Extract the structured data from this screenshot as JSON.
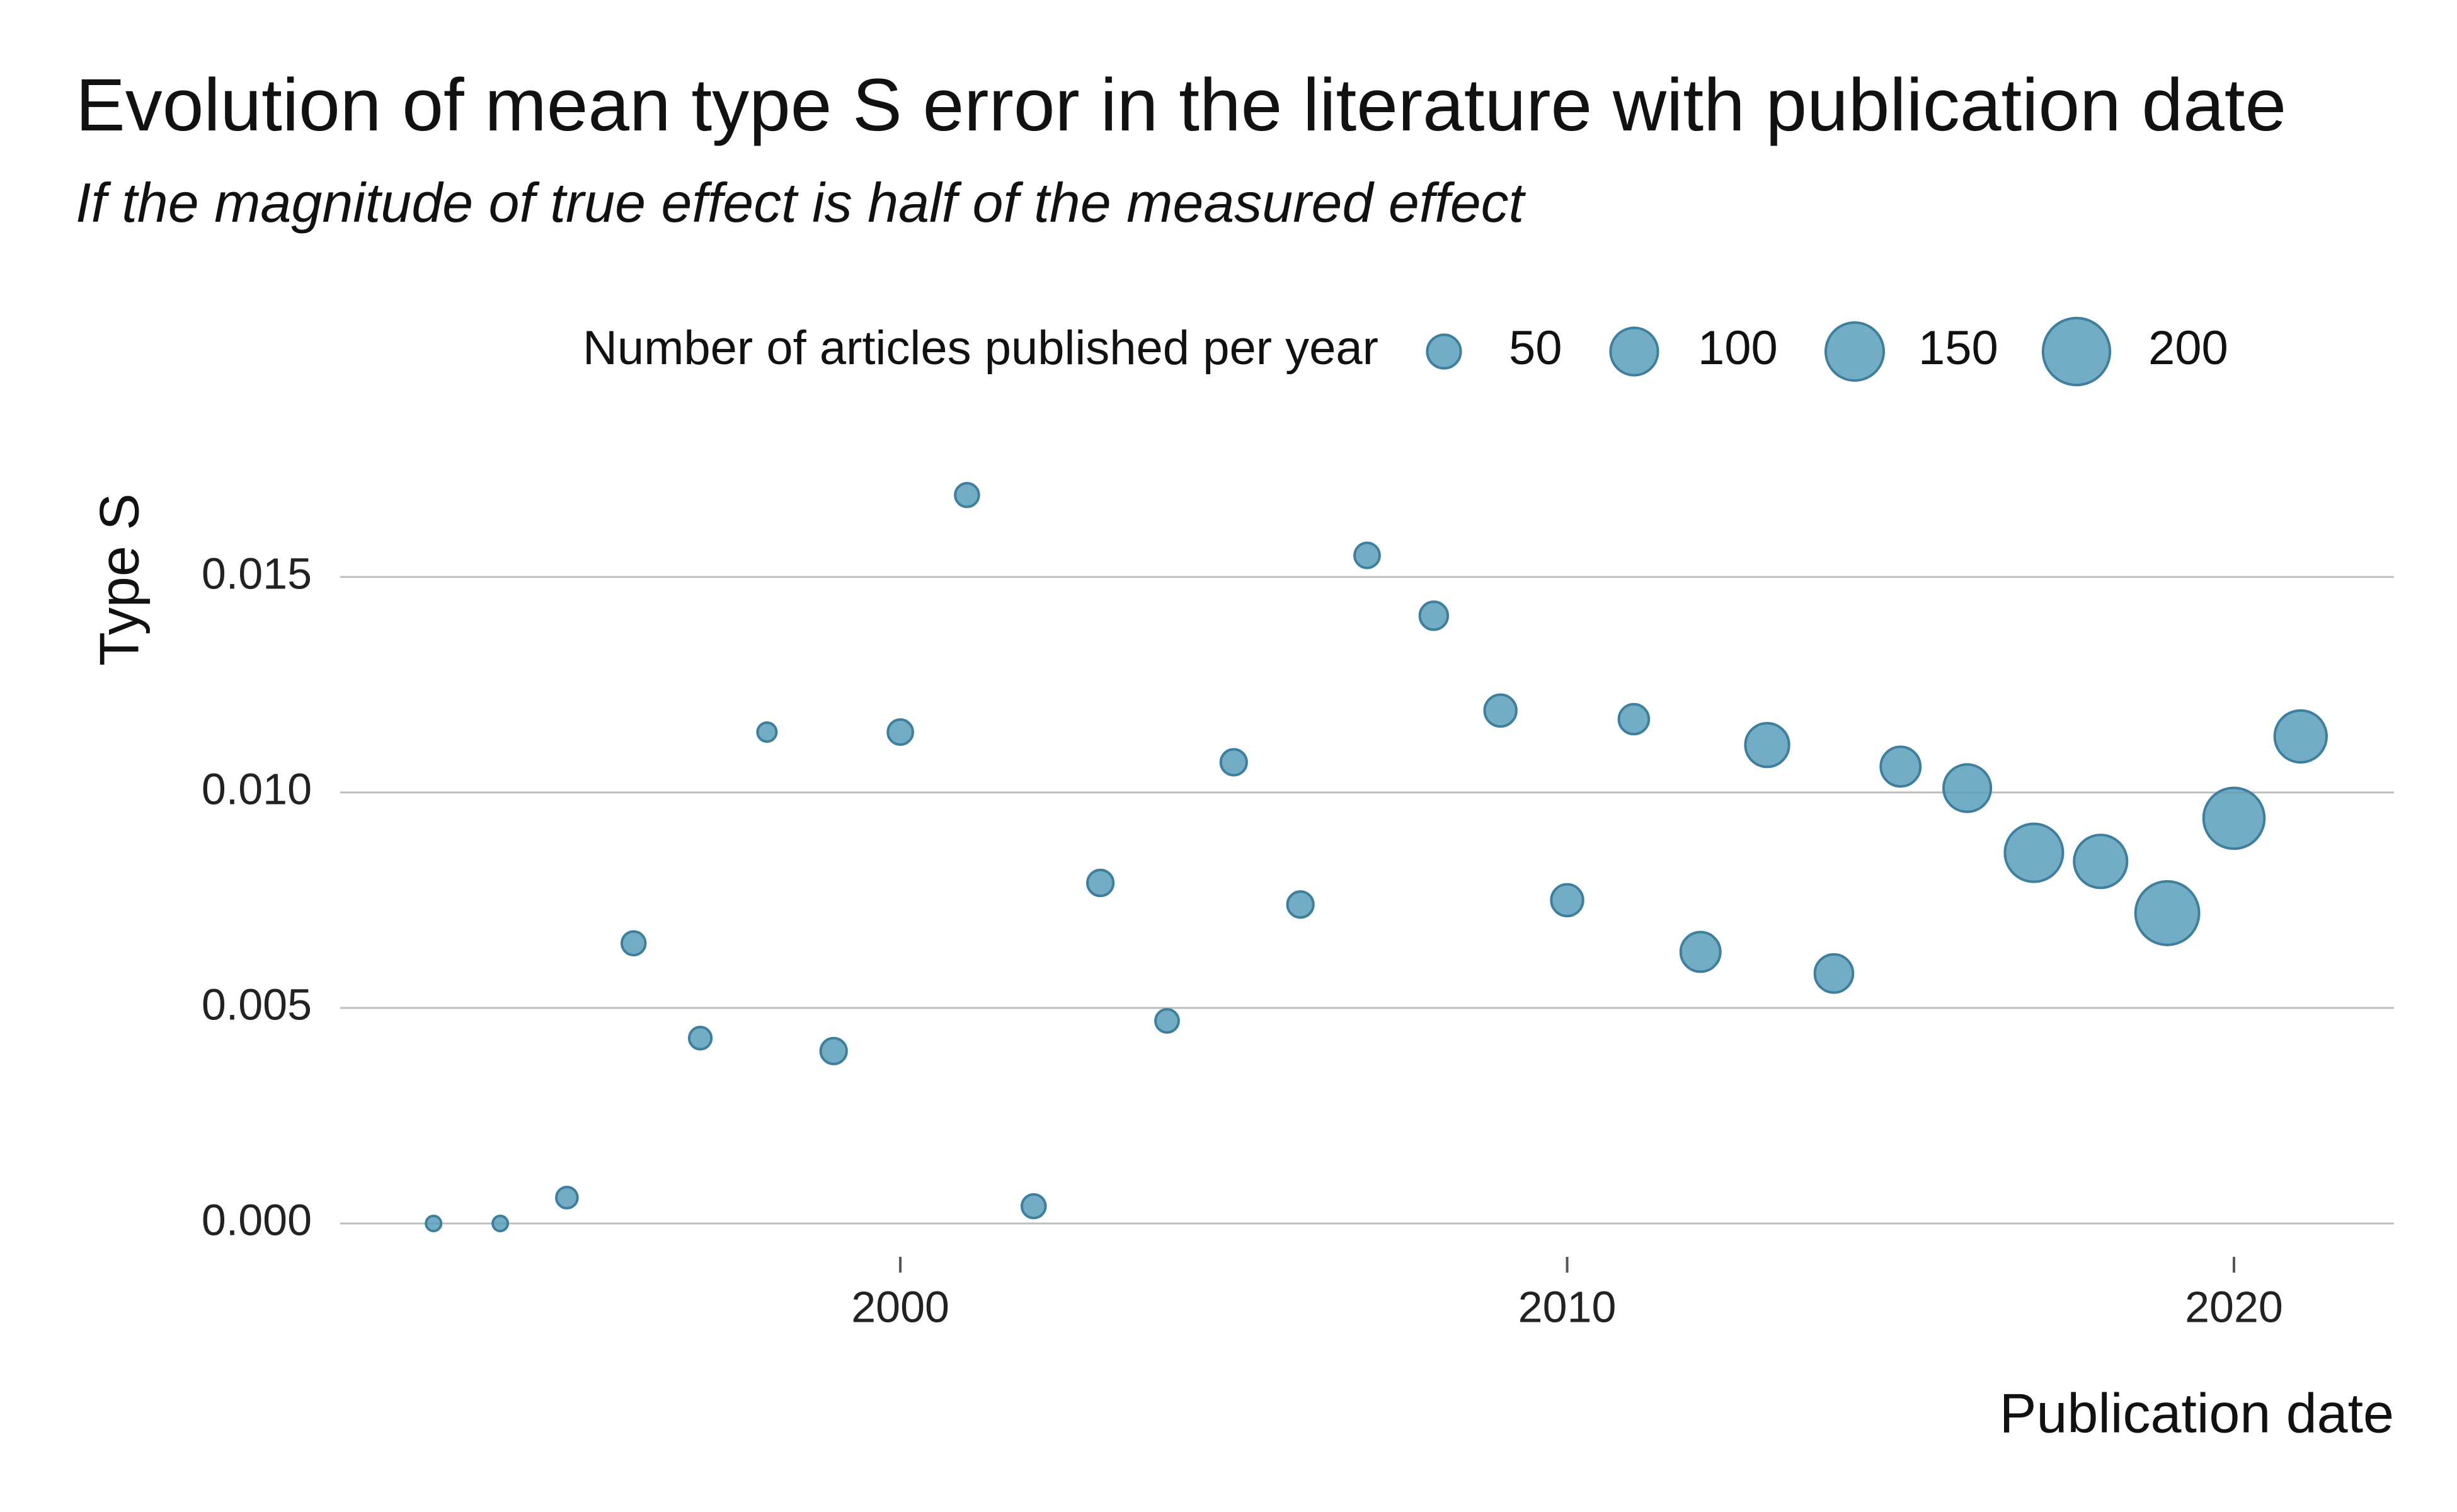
{
  "chart_data": {
    "type": "scatter",
    "title": "Evolution of mean type S error in the literature with publication date",
    "subtitle": "If the magnitude of true effect is half of the measured effect",
    "xlabel": "Publication date",
    "ylabel": "Type S",
    "xlim": [
      1991.6,
      2022.4
    ],
    "ylim": [
      0,
      0.0183
    ],
    "x_ticks": [
      2000,
      2010,
      2020
    ],
    "x_tick_labels": [
      "2000",
      "2010",
      "2020"
    ],
    "y_ticks": [
      0,
      0.005,
      0.01,
      0.015
    ],
    "y_tick_labels": [
      "0.000",
      "0.005",
      "0.010",
      "0.015"
    ],
    "grid": "horizontal",
    "legend": {
      "position": "top",
      "title": "Number of articles published per year",
      "sizes": [
        50,
        100,
        150,
        200
      ],
      "labels": [
        "50",
        "100",
        "150",
        "200"
      ]
    },
    "point_color": "#5b9dbb",
    "point_stroke": "#3f7f9e",
    "size_max": 230,
    "points": [
      {
        "x": 1993,
        "y": 0.0,
        "n": 3
      },
      {
        "x": 1994,
        "y": 0.0,
        "n": 10
      },
      {
        "x": 1995,
        "y": 0.0006,
        "n": 20
      },
      {
        "x": 1996,
        "y": 0.0065,
        "n": 25
      },
      {
        "x": 1997,
        "y": 0.0043,
        "n": 22
      },
      {
        "x": 1998,
        "y": 0.0114,
        "n": 16
      },
      {
        "x": 1999,
        "y": 0.004,
        "n": 30
      },
      {
        "x": 2000,
        "y": 0.0114,
        "n": 28
      },
      {
        "x": 2001,
        "y": 0.0169,
        "n": 25
      },
      {
        "x": 2002,
        "y": 0.0004,
        "n": 25
      },
      {
        "x": 2003,
        "y": 0.0079,
        "n": 30
      },
      {
        "x": 2004,
        "y": 0.0047,
        "n": 24
      },
      {
        "x": 2005,
        "y": 0.0107,
        "n": 30
      },
      {
        "x": 2006,
        "y": 0.0074,
        "n": 30
      },
      {
        "x": 2007,
        "y": 0.0155,
        "n": 28
      },
      {
        "x": 2008,
        "y": 0.0141,
        "n": 35
      },
      {
        "x": 2009,
        "y": 0.0119,
        "n": 45
      },
      {
        "x": 2010,
        "y": 0.0075,
        "n": 45
      },
      {
        "x": 2011,
        "y": 0.0117,
        "n": 40
      },
      {
        "x": 2012,
        "y": 0.0063,
        "n": 70
      },
      {
        "x": 2013,
        "y": 0.0111,
        "n": 85
      },
      {
        "x": 2014,
        "y": 0.0058,
        "n": 65
      },
      {
        "x": 2015,
        "y": 0.0106,
        "n": 70
      },
      {
        "x": 2016,
        "y": 0.0101,
        "n": 100
      },
      {
        "x": 2017,
        "y": 0.0086,
        "n": 150
      },
      {
        "x": 2018,
        "y": 0.0084,
        "n": 125
      },
      {
        "x": 2019,
        "y": 0.0072,
        "n": 180
      },
      {
        "x": 2020,
        "y": 0.0094,
        "n": 165
      },
      {
        "x": 2021,
        "y": 0.0113,
        "n": 120
      }
    ]
  }
}
